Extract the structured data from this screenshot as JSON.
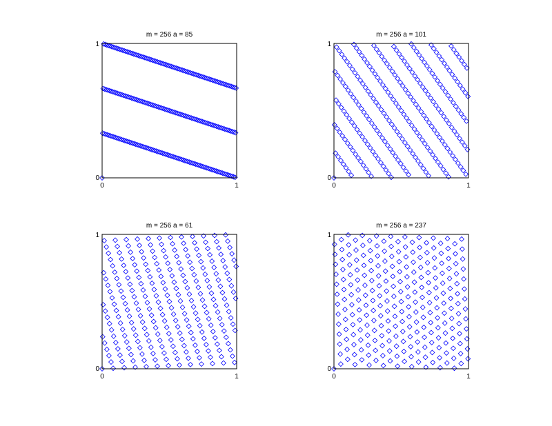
{
  "figure": {
    "background": "#ffffff",
    "marker_color": "#0000ff",
    "marker": "diamond"
  },
  "chart_data": [
    {
      "type": "scatter",
      "title": "m = 256   a = 85",
      "m": 256,
      "a": 85,
      "xlim": [
        0,
        1
      ],
      "ylim": [
        0,
        1
      ],
      "xticks": [
        "0",
        "1"
      ],
      "yticks": [
        "0",
        "1"
      ],
      "grid": false,
      "points": "consecutive pairs (x_n/m, x_{n+1}/m) of x_{n+1} = a·x_n mod m, for x_n = 0..m-1"
    },
    {
      "type": "scatter",
      "title": "m = 256   a = 101",
      "m": 256,
      "a": 101,
      "xlim": [
        0,
        1
      ],
      "ylim": [
        0,
        1
      ],
      "xticks": [
        "0",
        "1"
      ],
      "yticks": [
        "0",
        "1"
      ],
      "grid": false,
      "points": "consecutive pairs (x_n/m, x_{n+1}/m) of x_{n+1} = a·x_n mod m, for x_n = 0..m-1"
    },
    {
      "type": "scatter",
      "title": "m = 256   a = 61",
      "m": 256,
      "a": 61,
      "xlim": [
        0,
        1
      ],
      "ylim": [
        0,
        1
      ],
      "xticks": [
        "0",
        "1"
      ],
      "yticks": [
        "0",
        "1"
      ],
      "grid": false,
      "points": "consecutive pairs (x_n/m, x_{n+1}/m) of x_{n+1} = a·x_n mod m, for x_n = 0..m-1"
    },
    {
      "type": "scatter",
      "title": "m = 256   a = 237",
      "m": 256,
      "a": 237,
      "xlim": [
        0,
        1
      ],
      "ylim": [
        0,
        1
      ],
      "xticks": [
        "0",
        "1"
      ],
      "yticks": [
        "0",
        "1"
      ],
      "grid": false,
      "points": "consecutive pairs (x_n/m, x_{n+1}/m) of x_{n+1} = a·x_n mod m, for x_n = 0..m-1"
    }
  ]
}
